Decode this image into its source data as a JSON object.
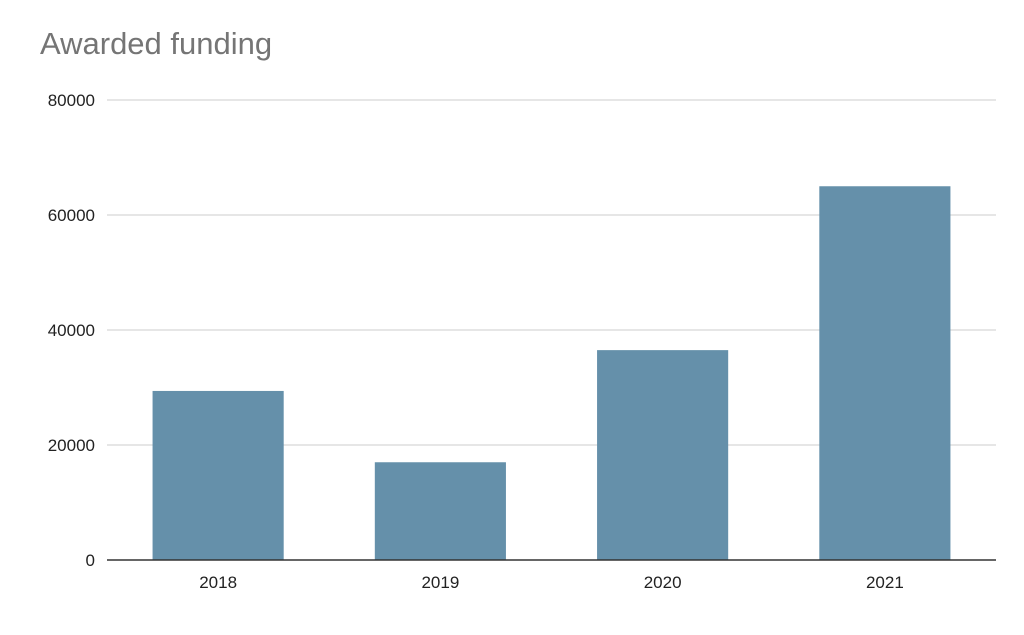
{
  "chart_data": {
    "type": "bar",
    "title": "Awarded funding",
    "xlabel": "",
    "ylabel": "",
    "categories": [
      "2018",
      "2019",
      "2020",
      "2021"
    ],
    "values": [
      29400,
      17000,
      36500,
      65000
    ],
    "ylim": [
      0,
      80000
    ],
    "yticks": [
      0,
      20000,
      40000,
      60000,
      80000
    ],
    "grid": true,
    "legend": "none",
    "bar_color": "#6590aa"
  }
}
